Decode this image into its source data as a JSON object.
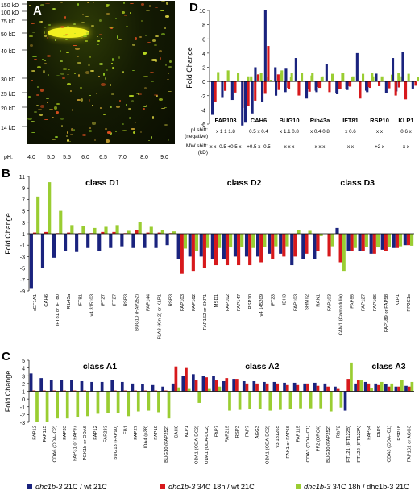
{
  "panelA": {
    "label": "A",
    "mw_labels": [
      "150 kD",
      "100 kD",
      "75 kD",
      "50 kD",
      "40 kD",
      "30 kD",
      "25 kD",
      "20 kD",
      "14 kD"
    ],
    "ph_prefix": "pH:",
    "ph_values": [
      "4.0",
      "5.0",
      "5.5",
      "6.0",
      "6.5",
      "7.0",
      "8.0",
      "9.0"
    ]
  },
  "panelD": {
    "label": "D",
    "ylabel": "Fold Change",
    "row_pi_label": "pI shift: (negative)",
    "row_mw_label": "MW shift: (kD)"
  },
  "panelB": {
    "label": "B",
    "ylabel": "Fold Change"
  },
  "panelC": {
    "label": "C",
    "ylabel": "Fold Change"
  },
  "colors": {
    "navy": "#1a237e",
    "red": "#d7191c",
    "green": "#9acd32"
  },
  "legend": [
    {
      "pre": "dhc1b-3",
      "post": " 21C / wt 21C",
      "color": "#1a237e"
    },
    {
      "pre": "dhc1b-3",
      "post": " 34C 18h / wt 21C",
      "color": "#d7191c"
    },
    {
      "pre": "dhc1b-3",
      "post": " 34C 18h / dhc1b-3 21C",
      "color": "#9acd32"
    }
  ],
  "chart_data": [
    {
      "panel": "D",
      "type": "bar",
      "ylabel": "Fold Change",
      "ylim": [
        -6,
        10
      ],
      "yticks": [
        -6,
        -4,
        -2,
        0,
        2,
        4,
        6,
        8,
        10
      ],
      "categories": [
        "FAP103",
        "CAH6",
        "BUG10",
        "Rib43a",
        "IFT81",
        "RSP10",
        "KLP1"
      ],
      "pi_shift": [
        [
          "x",
          "1",
          "1",
          "1.8"
        ],
        [
          "0.5",
          "x",
          "0.4"
        ],
        [
          "x",
          "1.1",
          "0.8"
        ],
        [
          "x",
          "0.4",
          "0.8"
        ],
        [
          "x",
          "0.6"
        ],
        [
          "x",
          "x"
        ],
        [
          "0.6",
          "x"
        ]
      ],
      "mw_shift": [
        [
          "x",
          "x",
          "-0.5",
          "+0.5",
          "x"
        ],
        [
          "+0.5",
          "x",
          "-0.5"
        ],
        [
          "x",
          "x",
          "x"
        ],
        [
          "x",
          "x",
          "x"
        ],
        [
          "x",
          "x"
        ],
        [
          "+2",
          "x"
        ],
        [
          "x",
          "x"
        ]
      ],
      "groups": [
        [
          [
            -4.7,
            1.1
          ],
          [
            -2.2,
            1.3
          ],
          [
            -2.6,
            1.0
          ],
          [
            -6.2,
            0.6
          ],
          [
            -4.5,
            0.8
          ],
          [
            -2.9,
            0.5
          ]
        ],
        [
          [
            -5.8,
            0.6
          ],
          [
            2.0,
            1.0
          ],
          [
            10.0,
            0.2
          ],
          [
            2.0,
            1.0
          ],
          [
            -1.5,
            0.5
          ]
        ],
        [
          [
            -2.0,
            1.3
          ],
          [
            1.8,
            1.0
          ],
          [
            3.3,
            1.0
          ],
          [
            -1.8,
            0.7
          ],
          [
            -1.3,
            0.5
          ]
        ],
        [
          [
            -2.4,
            1.0
          ],
          [
            -1.5,
            0.6
          ],
          [
            2.5,
            0.9
          ],
          [
            -1.7,
            1.0
          ],
          [
            -1.1,
            0.5
          ]
        ],
        [
          [
            -1.8,
            1.0
          ],
          [
            -1.2,
            0.6
          ],
          [
            4.0,
            0.9
          ],
          [
            -1.5,
            0.6
          ]
        ],
        [
          [
            -1.3,
            1.0
          ],
          [
            1.1,
            0.6
          ],
          [
            -1.6,
            0.8
          ],
          [
            -1.4,
            0.6
          ]
        ],
        [
          [
            3.3,
            1.0
          ],
          [
            4.2,
            0.9
          ],
          [
            -1.0,
            0.5
          ]
        ]
      ]
    },
    {
      "panel": "B",
      "type": "bar",
      "ylabel": "Fold Change",
      "ylim": [
        -9,
        11
      ],
      "yticks": [
        -9,
        -7,
        -5,
        -3,
        -1,
        1,
        3,
        5,
        7,
        9,
        11
      ],
      "class_labels": [
        {
          "text": "class D1",
          "start": 0,
          "end": 12
        },
        {
          "text": "class D2",
          "start": 13,
          "end": 24
        },
        {
          "text": "class D3",
          "start": 25,
          "end": 32
        }
      ],
      "categories": [
        "cEF1A1",
        "CAH6",
        "IFT81 or IFT80",
        "Rib43a",
        "IFT81",
        "v4 315103",
        "IFT27",
        "IFT27",
        "RSP3",
        "BUG10 (FAP252)",
        "FAP144",
        "FLA8 (Kin-2) or KLP1",
        "RSP3",
        "FAP103",
        "FAP162",
        "FAP162 or SKP1",
        "MSD1",
        "FAP102",
        "FAP147",
        "RSP10",
        "v4 145209",
        "IFT23",
        "IDH3",
        "FAP103",
        "SHMT2",
        "RAN1",
        "FAP103",
        "CAM1 (Calmodulin)",
        "FAP55",
        "FAP127",
        "FAP166",
        "FAP189 or FAP58",
        "KLP1",
        "PP2C1c"
      ],
      "series": [
        {
          "name": "dhc1b-3 21C / wt 21C",
          "values": [
            -8.5,
            -5.0,
            -3.2,
            -2.0,
            -2.2,
            -1.5,
            -2.0,
            -1.5,
            -1.2,
            -1.5,
            -1.5,
            -1.5,
            -1.0,
            -3.5,
            -3.0,
            -3.0,
            -3.5,
            -3.5,
            -3.0,
            -3.0,
            -3.0,
            -2.5,
            -2.5,
            -4.5,
            -3.5,
            -3.5,
            1.0,
            2.0,
            -2.0,
            -2.0,
            -2.5,
            -1.8,
            -1.5,
            -1.0
          ]
        },
        {
          "name": "dhc1b-3 34C 18h / wt 21C",
          "values": [
            1.2,
            1.3,
            1.1,
            1.2,
            1.1,
            1.1,
            1.3,
            1.3,
            1.1,
            1.6,
            1.2,
            1.2,
            1.1,
            -6.0,
            -5.5,
            -5.0,
            -4.5,
            -4.5,
            -4.5,
            -4.5,
            -4.0,
            -3.5,
            -3.0,
            -3.0,
            -2.5,
            -2.0,
            -3.0,
            -4.0,
            -2.0,
            -2.0,
            -2.5,
            -2.0,
            -1.5,
            -1.0
          ]
        },
        {
          "name": "dhc1b-3 34C 18h / dhc1b-3 21C",
          "values": [
            7.5,
            10.0,
            5.0,
            2.5,
            2.3,
            2.0,
            2.2,
            2.5,
            1.5,
            3.0,
            2.2,
            1.6,
            1.4,
            -1.6,
            -2.0,
            -1.5,
            -1.5,
            -1.4,
            -1.3,
            -1.5,
            -1.3,
            -1.2,
            -1.2,
            1.6,
            1.5,
            0.6,
            -1.2,
            -5.5,
            -1.5,
            -1.3,
            -1.4,
            -1.3,
            -1.2,
            -1.1
          ]
        }
      ]
    },
    {
      "panel": "C",
      "type": "bar",
      "ylabel": "Fold Change",
      "ylim": [
        -3,
        5
      ],
      "yticks": [
        -3,
        -2,
        -1,
        0,
        1,
        2,
        3,
        4,
        5
      ],
      "class_labels": [
        {
          "text": "class A1",
          "start": 0,
          "end": 13
        },
        {
          "text": "class A2",
          "start": 14,
          "end": 31
        },
        {
          "text": "class A3",
          "start": 32,
          "end": 38
        }
      ],
      "categories": [
        "FAP12",
        "FAP115",
        "ODA6 (ODA-IC2)",
        "FAP33",
        "FAP31 or FAP97",
        "PGK1b or ODA6",
        "FAP12",
        "FAP233",
        "BUG13 (FAP90)",
        "EB1",
        "FAP27",
        "IDA4 (p28)",
        "FAP19",
        "BUG10 (FAP252)",
        "CAH6",
        "KLP1",
        "ODA1 (ODA-DC2)",
        "ODA1 (ODA-DC2)",
        "FAP7",
        "FAP219",
        "RSP3",
        "FAP7",
        "AGG3",
        "ODA1 (ODA-DC2)",
        "v3 181265",
        "FAK1 or FAP66",
        "FAP115",
        "ODA3 (ODA-IC1)",
        "PF2 (DRC4)",
        "BUG10 (FAP252)",
        "Rib72",
        "IFT121 (IFT122B)",
        "IFT122 (IFT122A)",
        "FAP54",
        "FAP9",
        "ODA3 (ODA-IC1)",
        "RSP18",
        "FAP161 or AGG3"
      ],
      "series": [
        {
          "name": "dhc1b-3 21C / wt 21C",
          "values": [
            3.3,
            2.7,
            2.5,
            2.5,
            2.5,
            2.3,
            2.2,
            2.2,
            2.5,
            2.2,
            2.0,
            1.9,
            1.8,
            1.6,
            2.0,
            3.0,
            3.2,
            3.0,
            3.0,
            2.3,
            2.6,
            2.3,
            2.3,
            2.2,
            2.2,
            2.1,
            2.1,
            2.0,
            2.1,
            2.0,
            1.6,
            -1.5,
            2.0,
            2.2,
            2.0,
            1.9,
            1.6,
            1.7
          ]
        },
        {
          "name": "dhc1b-3 34C 18h / wt 21C",
          "values": [
            1.1,
            1.1,
            1.1,
            1.1,
            1.1,
            1.1,
            1.0,
            1.0,
            1.1,
            1.1,
            1.1,
            1.1,
            1.1,
            1.1,
            4.2,
            4.0,
            2.5,
            2.8,
            2.5,
            2.7,
            2.6,
            2.0,
            2.0,
            2.0,
            2.0,
            1.8,
            1.8,
            2.0,
            1.7,
            1.6,
            1.3,
            2.6,
            2.4,
            2.0,
            1.8,
            1.6,
            1.6,
            1.6
          ]
        },
        {
          "name": "dhc1b-3 34C 18h / dhc1b-3 21C",
          "values": [
            -3.0,
            -3.0,
            -2.5,
            -2.5,
            -2.3,
            -2.2,
            -1.9,
            -1.8,
            -1.8,
            -2.2,
            -1.6,
            -1.5,
            -1.7,
            -2.5,
            1.5,
            1.3,
            -0.5,
            1.3,
            1.6,
            -1.5,
            -1.4,
            -1.3,
            -1.3,
            -1.5,
            -1.4,
            -1.3,
            -1.2,
            -1.2,
            -1.2,
            -1.6,
            -1.1,
            4.7,
            2.5,
            1.4,
            2.2,
            2.0,
            2.5,
            2.2
          ]
        }
      ]
    }
  ]
}
